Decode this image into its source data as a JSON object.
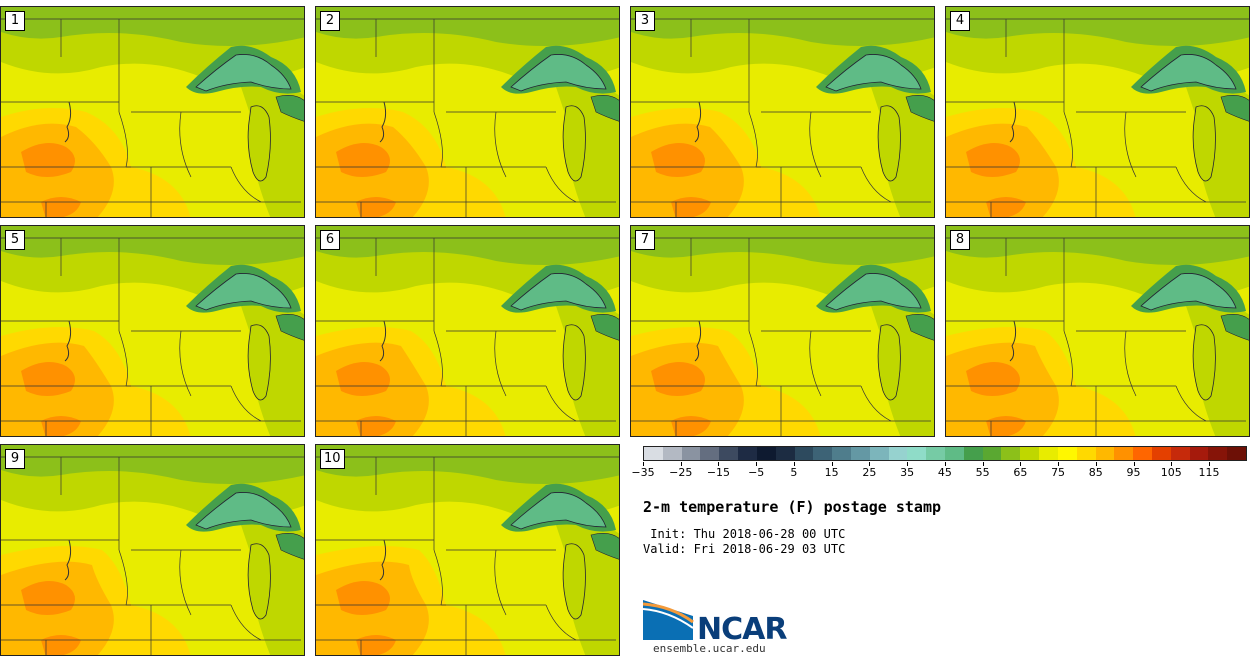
{
  "panels": [
    {
      "label": "1"
    },
    {
      "label": "2"
    },
    {
      "label": "3"
    },
    {
      "label": "4"
    },
    {
      "label": "5"
    },
    {
      "label": "6"
    },
    {
      "label": "7"
    },
    {
      "label": "8"
    },
    {
      "label": "9"
    },
    {
      "label": "10"
    }
  ],
  "colorbar": {
    "ticks": [
      "−35",
      "−25",
      "−15",
      "−5",
      "5",
      "15",
      "25",
      "35",
      "45",
      "55",
      "65",
      "75",
      "85",
      "95",
      "105",
      "115"
    ],
    "colors": [
      "#d9dde3",
      "#b3b9c3",
      "#8a93a1",
      "#646e80",
      "#3d4a60",
      "#1e2b44",
      "#0e1a30",
      "#1c2c42",
      "#2d4a5e",
      "#3d6376",
      "#4f7d8c",
      "#6498a4",
      "#7cb5bb",
      "#96d2cf",
      "#8fdcc8",
      "#76cba5",
      "#5fbb86",
      "#459f4c",
      "#5aa831",
      "#8cc01a",
      "#bfd700",
      "#e8ec00",
      "#fff700",
      "#ffd900",
      "#ffb800",
      "#ff9100",
      "#ff6600",
      "#e44000",
      "#c62a0b",
      "#a51a0c",
      "#861408",
      "#6d1006"
    ]
  },
  "title": "2-m temperature (F) postage stamp",
  "init": " Init: Thu 2018-06-28 00 UTC",
  "valid": "Valid: Fri 2018-06-29 03 UTC",
  "logo": {
    "text": "NCAR"
  },
  "site": "ensemble.ucar.edu"
}
